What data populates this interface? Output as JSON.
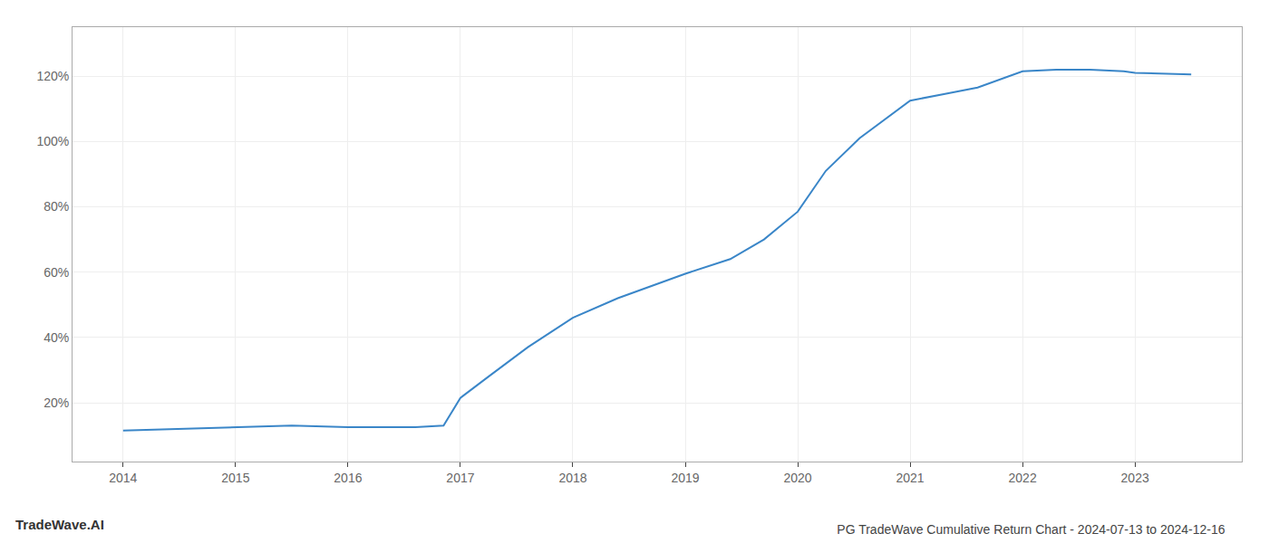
{
  "chart_data": {
    "type": "line",
    "title": "PG TradeWave Cumulative Return Chart - 2024-07-13 to 2024-12-16",
    "annotations": [
      "TradeWave.AI"
    ],
    "x": [
      2014.0,
      2014.5,
      2015.0,
      2015.5,
      2016.0,
      2016.3,
      2016.6,
      2016.85,
      2017.0,
      2017.25,
      2017.6,
      2018.0,
      2018.4,
      2018.8,
      2019.0,
      2019.4,
      2019.7,
      2020.0,
      2020.25,
      2020.55,
      2021.0,
      2021.3,
      2021.6,
      2022.0,
      2022.3,
      2022.6,
      2022.9,
      2023.0,
      2023.5
    ],
    "values": [
      11.5,
      12.0,
      12.5,
      13.0,
      12.5,
      12.5,
      12.5,
      13.0,
      21.5,
      28.0,
      37.0,
      46.0,
      52.0,
      57.0,
      59.5,
      64.0,
      70.0,
      78.5,
      91.0,
      101.0,
      112.5,
      114.5,
      116.5,
      121.5,
      122.0,
      122.0,
      121.5,
      121.0,
      120.5
    ],
    "color": "#3a86c8",
    "xlim": [
      2013.55,
      2023.95
    ],
    "ylim": [
      2,
      135
    ],
    "xticks": [
      2014,
      2015,
      2016,
      2017,
      2018,
      2019,
      2020,
      2021,
      2022,
      2023
    ],
    "yticks": [
      {
        "value": 20,
        "label": "20%"
      },
      {
        "value": 40,
        "label": "40%"
      },
      {
        "value": 60,
        "label": "60%"
      },
      {
        "value": 80,
        "label": "80%"
      },
      {
        "value": 100,
        "label": "100%"
      },
      {
        "value": 120,
        "label": "120%"
      }
    ],
    "grid": true
  }
}
